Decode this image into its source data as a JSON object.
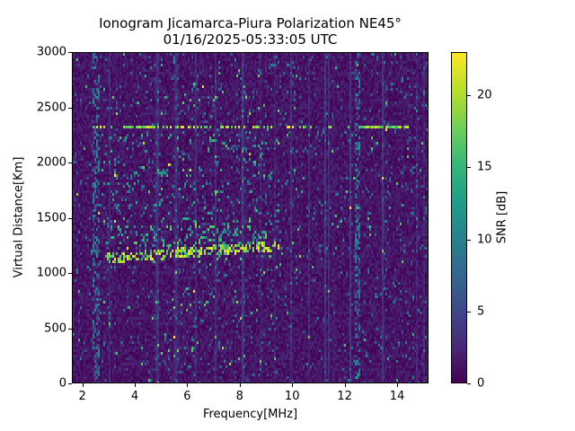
{
  "chart_data": {
    "type": "heatmap",
    "title": "Ionogram Jicamarca-Piura Polarization NE45°",
    "subtitle": "01/16/2025-05:33:05 UTC",
    "title_line1": "Ionogram Jicamarca-Piura Polarization NE45°",
    "title_line2": "01/16/2025-05:33:05 UTC",
    "xlabel": "Frequency[MHz]",
    "ylabel": "Virtual Distance[Km]",
    "xlim": [
      1.6,
      15.2
    ],
    "ylim": [
      0,
      3000
    ],
    "xticks": [
      2,
      4,
      6,
      8,
      10,
      12,
      14
    ],
    "yticks": [
      0,
      500,
      1000,
      1500,
      2000,
      2500,
      3000
    ],
    "colorbar": {
      "label": "SNR [dB]",
      "colormap": "viridis",
      "range": [
        0,
        23
      ],
      "ticks": [
        0,
        5,
        10,
        15,
        20
      ]
    },
    "grid": false,
    "features": [
      {
        "name": "F-layer trace",
        "freq_range_MHz": [
          2.8,
          9.5
        ],
        "distance_Km": [
          1120,
          1250
        ],
        "snr_dB": [
          15,
          23
        ],
        "note": "bright yellow trace rising slightly from ~1150 Km at 3 MHz to ~1220 Km at 7 MHz"
      },
      {
        "name": "upper echo band",
        "freq_range_MHz": [
          2.8,
          9.0
        ],
        "distance_Km": [
          1250,
          1450
        ],
        "snr_dB": [
          8,
          18
        ]
      },
      {
        "name": "horizontal interference line",
        "freq_range_MHz": [
          2.3,
          14.5
        ],
        "distance_Km": [
          2340,
          2340
        ],
        "snr_dB": [
          15,
          23
        ],
        "note": "strong segments near 4 MHz and 12.5-14.5 MHz"
      },
      {
        "name": "vertical noise band",
        "freq_range_MHz": [
          12.4,
          12.6
        ],
        "distance_Km": [
          0,
          3000
        ],
        "snr_dB": [
          3,
          12
        ]
      },
      {
        "name": "vertical noise band",
        "freq_range_MHz": [
          2.3,
          2.6
        ],
        "distance_Km": [
          0,
          3000
        ],
        "snr_dB": [
          3,
          12
        ]
      }
    ],
    "background_snr_dB": [
      0,
      4
    ]
  }
}
